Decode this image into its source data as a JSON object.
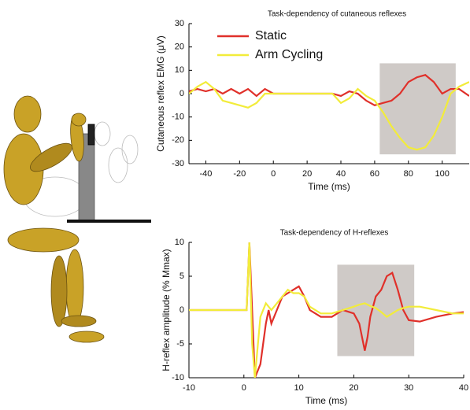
{
  "chart_data": [
    {
      "type": "line",
      "title": "Task-dependency of cutaneous reflexes",
      "xlabel": "Time (ms)",
      "ylabel": "Cutaneous reflex EMG (μV)",
      "x": [
        -50,
        -45,
        -40,
        -35,
        -30,
        -25,
        -20,
        -15,
        -10,
        -5,
        0,
        10,
        20,
        30,
        35,
        40,
        45,
        50,
        55,
        60,
        65,
        70,
        75,
        80,
        85,
        90,
        95,
        100,
        105,
        110,
        116
      ],
      "series": [
        {
          "name": "Static",
          "color": "#e0302a",
          "values": [
            1,
            2,
            1,
            2,
            0,
            2,
            0,
            2,
            -1,
            2,
            0,
            0,
            0,
            0,
            0,
            -1,
            1,
            0,
            -3,
            -5,
            -4,
            -3,
            0,
            5,
            7,
            8,
            5,
            0,
            2,
            2,
            -1
          ]
        },
        {
          "name": "Arm Cycling",
          "color": "#f2ec3a",
          "values": [
            0,
            3,
            5,
            2,
            -3,
            -4,
            -5,
            -6,
            -4,
            0,
            0,
            0,
            0,
            0,
            0,
            -4,
            -2,
            2,
            -1,
            -3,
            -8,
            -14,
            -19,
            -23,
            -24,
            -23,
            -18,
            -10,
            0,
            3,
            5
          ]
        }
      ],
      "xlim": [
        -50,
        116
      ],
      "ylim": [
        -30,
        30
      ],
      "xticks": [
        -40,
        -20,
        0,
        20,
        40,
        60,
        80,
        100
      ],
      "yticks": [
        -30,
        -20,
        -10,
        0,
        10,
        20,
        30
      ],
      "legend": "upper left",
      "highlight": {
        "x": [
          63,
          108
        ],
        "y": [
          -26,
          13
        ]
      }
    },
    {
      "type": "line",
      "title": "Task-dependency of H-reflexes",
      "xlabel": "Time (ms)",
      "ylabel": "H-reflex amplitude (% Mmax)",
      "x": [
        -10,
        -5,
        0,
        0.5,
        1,
        1.5,
        2,
        3,
        4,
        4.5,
        5,
        6,
        7,
        8,
        9,
        10,
        11,
        12,
        14,
        16,
        18,
        20,
        21,
        22,
        22.5,
        23,
        24,
        25,
        26,
        27,
        28,
        29,
        30,
        32,
        35,
        38,
        40
      ],
      "series": [
        {
          "color": "#e0302a",
          "values": [
            0,
            0,
            0,
            0,
            10,
            0,
            -10,
            -8,
            -2,
            0,
            -2,
            0,
            2,
            2.5,
            3,
            3.5,
            2,
            0,
            -1,
            -1,
            0,
            -0.5,
            -2,
            -6,
            -4,
            -1,
            2,
            3,
            5,
            5.5,
            3,
            0,
            -1.5,
            -1.7,
            -1,
            -0.5,
            -0.3
          ]
        },
        {
          "color": "#f2ec3a",
          "values": [
            0,
            0,
            0,
            0,
            10,
            -5,
            -10,
            -1,
            1,
            0.5,
            0,
            1,
            2,
            3,
            2.5,
            2.5,
            2,
            0.5,
            -0.5,
            -0.5,
            0,
            0.5,
            0.8,
            1,
            0.8,
            0.6,
            0.3,
            -0.3,
            -1,
            -0.5,
            0,
            0.3,
            0.5,
            0.5,
            0,
            -0.5,
            -0.5
          ]
        }
      ],
      "xlim": [
        -10,
        40
      ],
      "ylim": [
        -10,
        10
      ],
      "xticks": [
        -10,
        0,
        10,
        20,
        30,
        40
      ],
      "yticks": [
        -10,
        -5,
        0,
        5,
        10
      ],
      "highlight": {
        "x": [
          17,
          31
        ],
        "y": [
          -6.8,
          6.7
        ]
      }
    }
  ]
}
